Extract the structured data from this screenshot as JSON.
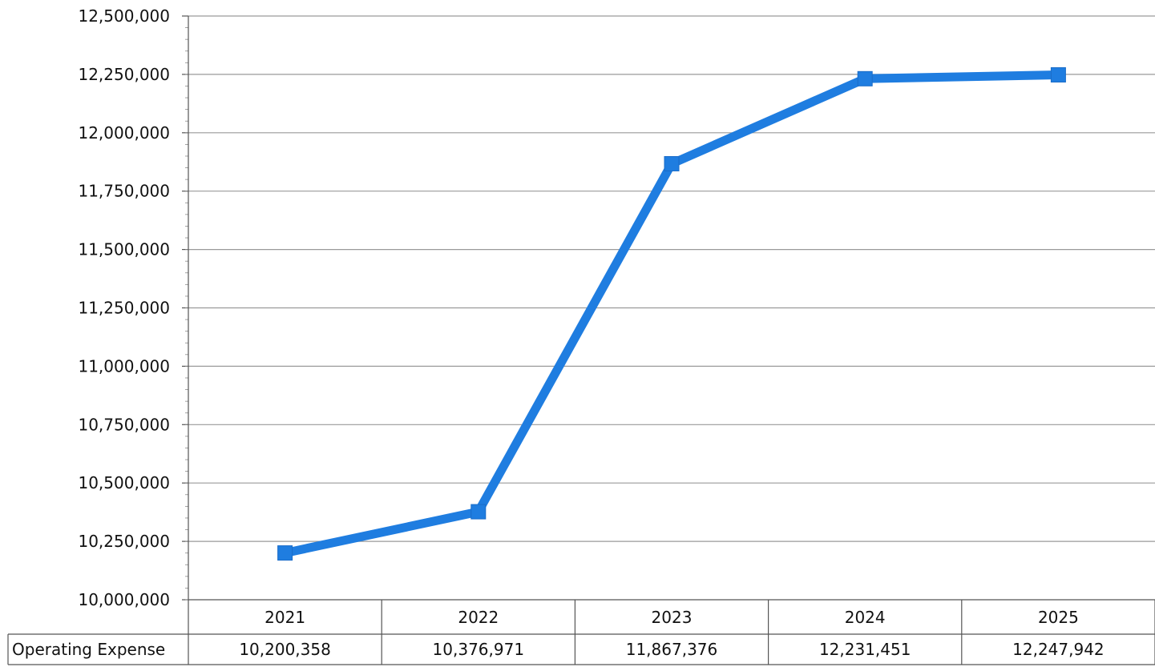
{
  "chart_data": {
    "type": "line",
    "categories": [
      "2021",
      "2022",
      "2023",
      "2024",
      "2025"
    ],
    "series": [
      {
        "name": "Operating Expense",
        "values": [
          10200358,
          10376971,
          11867376,
          12231451,
          12247942
        ],
        "value_labels": [
          "10,200,358",
          "10,376,971",
          "11,867,376",
          "12,231,451",
          "12,247,942"
        ]
      }
    ],
    "ylim": [
      10000000,
      12500000
    ],
    "yticks": [
      10000000,
      10250000,
      10500000,
      10750000,
      11000000,
      11250000,
      11500000,
      11750000,
      12000000,
      12250000,
      12500000
    ],
    "ytick_labels": [
      "10,000,000",
      "10,250,000",
      "10,500,000",
      "10,750,000",
      "11,000,000",
      "11,250,000",
      "11,500,000",
      "11,750,000",
      "12,000,000",
      "12,250,000",
      "12,500,000"
    ],
    "grid": true,
    "legend": "data-table-below",
    "line_color": "#1f7de0",
    "title": "",
    "xlabel": "",
    "ylabel": ""
  }
}
